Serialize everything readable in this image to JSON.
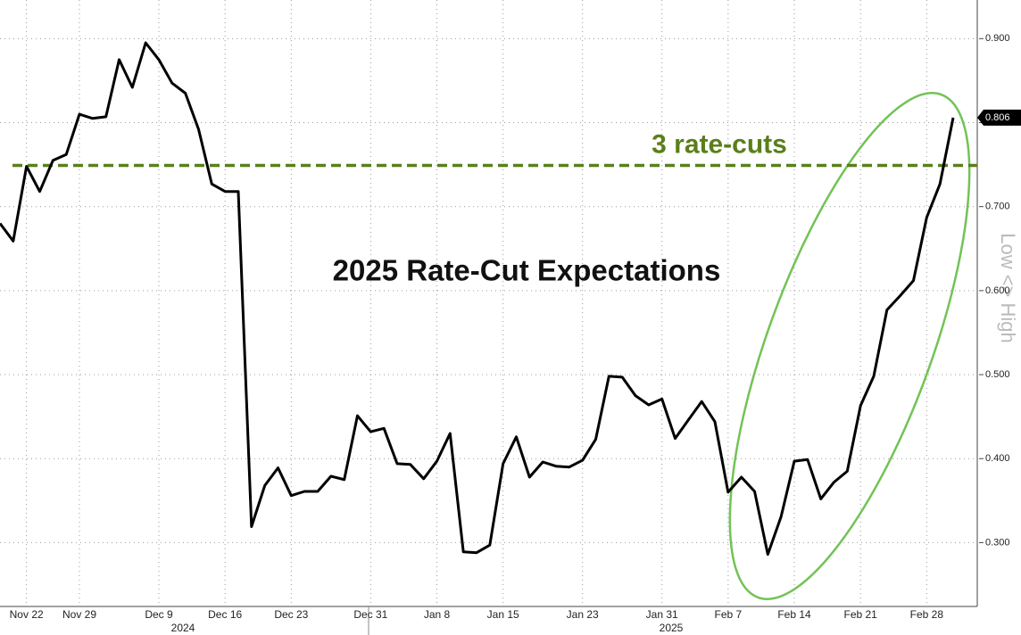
{
  "chart_data": {
    "type": "line",
    "title": "2025 Rate-Cut Expectations",
    "y_label": "Low <> High",
    "categories": [
      null,
      null,
      "Nov 22",
      null,
      null,
      null,
      "Nov 29",
      null,
      null,
      null,
      null,
      null,
      "Dec 9",
      null,
      null,
      null,
      null,
      "Dec 16",
      null,
      null,
      null,
      null,
      "Dec 23",
      null,
      null,
      null,
      null,
      null,
      "Dec 31",
      null,
      null,
      null,
      null,
      "Jan 8",
      null,
      null,
      null,
      null,
      "Jan 15",
      null,
      null,
      null,
      null,
      null,
      "Jan 23",
      null,
      null,
      null,
      null,
      null,
      "Jan 31",
      null,
      null,
      null,
      null,
      "Feb 7",
      null,
      null,
      null,
      null,
      "Feb 14",
      null,
      null,
      null,
      null,
      "Feb 21",
      null,
      null,
      null,
      null,
      "Feb 28",
      null,
      null
    ],
    "years": [
      "2024",
      "2025"
    ],
    "series": [
      {
        "name": "2025 Rate-Cut Expectations",
        "color": "#000000",
        "values": [
          0.68,
          0.659,
          0.748,
          0.718,
          0.755,
          0.762,
          0.81,
          0.805,
          0.807,
          0.875,
          0.842,
          0.895,
          0.875,
          0.847,
          0.835,
          0.792,
          0.727,
          0.718,
          0.718,
          0.319,
          0.368,
          0.389,
          0.356,
          0.361,
          0.361,
          0.379,
          0.375,
          0.451,
          0.432,
          0.436,
          0.394,
          0.393,
          0.376,
          0.397,
          0.43,
          0.289,
          0.288,
          0.297,
          0.394,
          0.426,
          0.378,
          0.396,
          0.391,
          0.39,
          0.398,
          0.423,
          0.498,
          0.497,
          0.475,
          0.464,
          0.471,
          0.424,
          0.446,
          0.468,
          0.444,
          0.36,
          0.378,
          0.361,
          0.286,
          0.331,
          0.397,
          0.399,
          0.352,
          0.372,
          0.385,
          0.463,
          0.498,
          0.577,
          0.594,
          0.612,
          0.687,
          0.727,
          0.806
        ]
      }
    ],
    "ylim": [
      0.224,
      0.946
    ],
    "yticks": [
      {
        "value": 0.3,
        "label": "0.300"
      },
      {
        "value": 0.4,
        "label": "0.400"
      },
      {
        "value": 0.5,
        "label": "0.500"
      },
      {
        "value": 0.6,
        "label": "0.600"
      },
      {
        "value": 0.7,
        "label": "0.700"
      },
      {
        "value": 0.8,
        "label": "0.800"
      },
      {
        "value": 0.9,
        "label": "0.900"
      }
    ],
    "reference_line": {
      "value": 0.749,
      "label": "3 rate-cuts",
      "color": "#5a7f1a"
    },
    "grid": true
  }
}
